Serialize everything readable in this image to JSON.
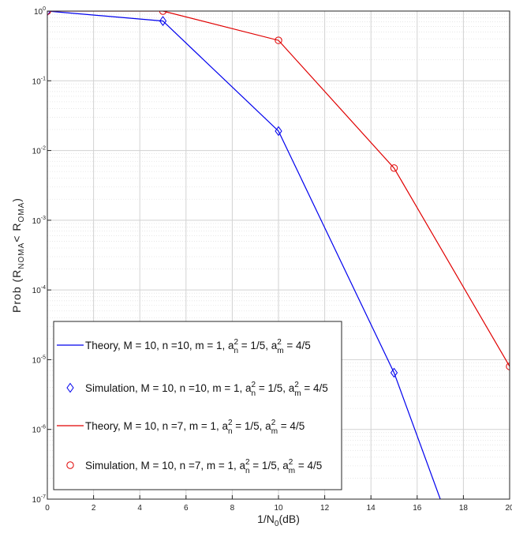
{
  "chart_data": {
    "type": "line",
    "title": "",
    "xlabel": "1/N",
    "xlabel_sub": "0",
    "xlabel_suffix": "(dB)",
    "ylabel": {
      "prefix": "Prob (R",
      "sub1": "NOMA",
      "mid": "< R",
      "sub2": "OMA",
      "suffix": ")"
    },
    "xlim": [
      0,
      20
    ],
    "ylim": [
      1e-07,
      1
    ],
    "yscale": "log",
    "grid": true,
    "legend_position": "bottom-left",
    "x_ticks": [
      "0",
      "2",
      "4",
      "6",
      "8",
      "10",
      "12",
      "14",
      "16",
      "18",
      "20"
    ],
    "y_ticks": [
      {
        "base": "10",
        "exp": "0"
      },
      {
        "base": "10",
        "exp": "-1"
      },
      {
        "base": "10",
        "exp": "-2"
      },
      {
        "base": "10",
        "exp": "-3"
      },
      {
        "base": "10",
        "exp": "-4"
      },
      {
        "base": "10",
        "exp": "-5"
      },
      {
        "base": "10",
        "exp": "-6"
      },
      {
        "base": "10",
        "exp": "-7"
      }
    ],
    "series": [
      {
        "name": "Theory, M = 10, n =10, m = 1, a_n^2 = 1/5, a_m^2 = 4/5",
        "legend_parts": [
          "Theory, M = 10, n =10, m = 1, a",
          "2",
          "n",
          " = 1/5, a",
          "2",
          "m",
          " = 4/5"
        ],
        "style": "line",
        "color": "#0000ee",
        "x": [
          0,
          5,
          10,
          15,
          17
        ],
        "y": [
          1.0,
          0.72,
          0.019,
          6.5e-06,
          1e-07
        ]
      },
      {
        "name": "Simulation, M = 10, n =10, m = 1, a_n^2 = 1/5, a_m^2 = 4/5",
        "legend_parts": [
          "Simulation, M = 10, n =10, m = 1, a",
          "2",
          "n",
          " = 1/5, a",
          "2",
          "m",
          " = 4/5"
        ],
        "style": "marker",
        "marker": "diamond",
        "color": "#0000ee",
        "x": [
          0,
          5,
          10,
          15
        ],
        "y": [
          1.0,
          0.72,
          0.019,
          6.5e-06
        ]
      },
      {
        "name": "Theory, M = 10, n =7, m = 1, a_n^2 = 1/5, a_m^2 = 4/5",
        "legend_parts": [
          "Theory, M = 10, n =7, m = 1, a",
          "2",
          "n",
          " = 1/5, a",
          "2",
          "m",
          " = 4/5"
        ],
        "style": "line",
        "color": "#e00000",
        "x": [
          0,
          5,
          10,
          15,
          20
        ],
        "y": [
          1.0,
          1.0,
          0.38,
          0.0056,
          8e-06
        ]
      },
      {
        "name": "Simulation, M = 10, n =7, m = 1, a_n^2 = 1/5, a_m^2 = 4/5",
        "legend_parts": [
          "Simulation, M = 10, n =7, m = 1, a",
          "2",
          "n",
          " = 1/5, a",
          "2",
          "m",
          " = 4/5"
        ],
        "style": "marker",
        "marker": "circle",
        "color": "#e00000",
        "x": [
          0,
          5,
          10,
          15,
          20
        ],
        "y": [
          1.0,
          1.0,
          0.38,
          0.0056,
          8e-06
        ]
      }
    ]
  }
}
